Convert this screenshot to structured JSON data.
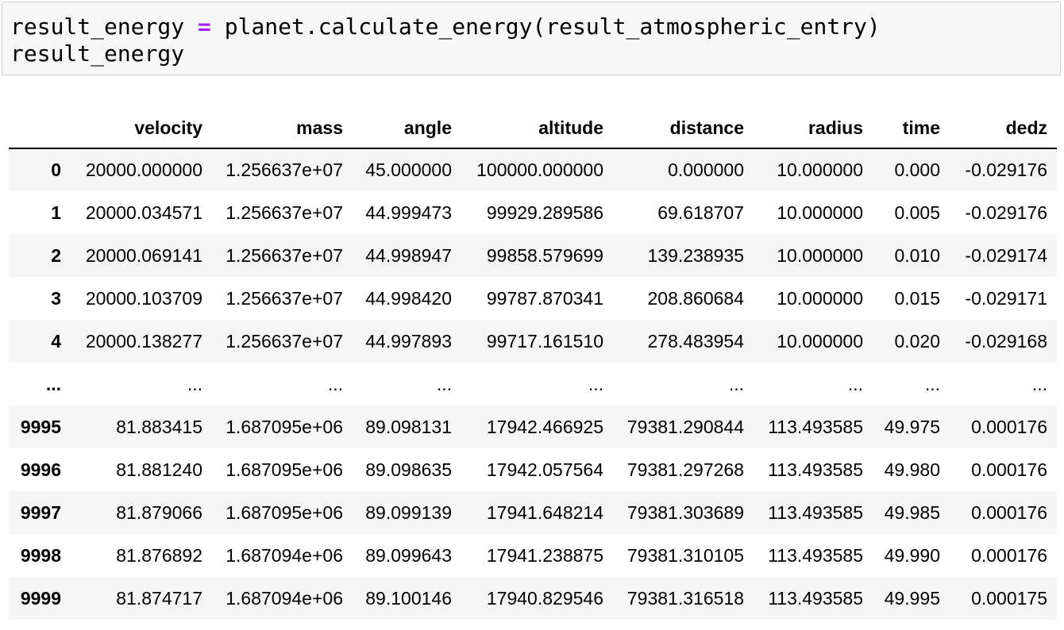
{
  "code_cell": {
    "line1_var": "result_energy ",
    "line1_op": "=",
    "line1_rest": " planet.calculate_energy(result_atmospheric_entry)",
    "line2": "result_energy"
  },
  "dataframe": {
    "index_header": "",
    "columns": [
      "velocity",
      "mass",
      "angle",
      "altitude",
      "distance",
      "radius",
      "time",
      "dedz"
    ],
    "rows": [
      {
        "index": "0",
        "cells": [
          "20000.000000",
          "1.256637e+07",
          "45.000000",
          "100000.000000",
          "0.000000",
          "10.000000",
          "0.000",
          "-0.029176"
        ]
      },
      {
        "index": "1",
        "cells": [
          "20000.034571",
          "1.256637e+07",
          "44.999473",
          "99929.289586",
          "69.618707",
          "10.000000",
          "0.005",
          "-0.029176"
        ]
      },
      {
        "index": "2",
        "cells": [
          "20000.069141",
          "1.256637e+07",
          "44.998947",
          "99858.579699",
          "139.238935",
          "10.000000",
          "0.010",
          "-0.029174"
        ]
      },
      {
        "index": "3",
        "cells": [
          "20000.103709",
          "1.256637e+07",
          "44.998420",
          "99787.870341",
          "208.860684",
          "10.000000",
          "0.015",
          "-0.029171"
        ]
      },
      {
        "index": "4",
        "cells": [
          "20000.138277",
          "1.256637e+07",
          "44.997893",
          "99717.161510",
          "278.483954",
          "10.000000",
          "0.020",
          "-0.029168"
        ]
      },
      {
        "index": "...",
        "cells": [
          "...",
          "...",
          "...",
          "...",
          "...",
          "...",
          "...",
          "..."
        ]
      },
      {
        "index": "9995",
        "cells": [
          "81.883415",
          "1.687095e+06",
          "89.098131",
          "17942.466925",
          "79381.290844",
          "113.493585",
          "49.975",
          "0.000176"
        ]
      },
      {
        "index": "9996",
        "cells": [
          "81.881240",
          "1.687095e+06",
          "89.098635",
          "17942.057564",
          "79381.297268",
          "113.493585",
          "49.980",
          "0.000176"
        ]
      },
      {
        "index": "9997",
        "cells": [
          "81.879066",
          "1.687095e+06",
          "89.099139",
          "17941.648214",
          "79381.303689",
          "113.493585",
          "49.985",
          "0.000176"
        ]
      },
      {
        "index": "9998",
        "cells": [
          "81.876892",
          "1.687094e+06",
          "89.099643",
          "17941.238875",
          "79381.310105",
          "113.493585",
          "49.990",
          "0.000176"
        ]
      },
      {
        "index": "9999",
        "cells": [
          "81.874717",
          "1.687094e+06",
          "89.100146",
          "17940.829546",
          "79381.316518",
          "113.493585",
          "49.995",
          "0.000175"
        ]
      }
    ]
  }
}
